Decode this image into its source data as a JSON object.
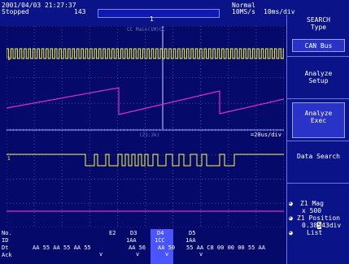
{
  "status": {
    "datetime": "2001/04/03 21:27:37",
    "state": "Stopped",
    "count": "143",
    "mode": "Normal",
    "sample_rate": "10MS/s",
    "time_div": "10ms/div"
  },
  "main_window": {
    "label": "CC Main(1M)CC",
    "trace_label": "1"
  },
  "zoom_window": {
    "label": "(Z1:2k)",
    "time_div": "=20us/div"
  },
  "menu": {
    "title": "SEARCH",
    "type_label": "Type",
    "type_value": "CAN Bus",
    "analyze_setup": "Analyze\nSetup",
    "analyze_exec": "Analyze\nExec",
    "data_search": "Data Search",
    "z1_mag_label": "Z1 Mag",
    "z1_mag_value": "x 500",
    "z1_position_label": "Z1 Position",
    "z1_position_value": "0.38",
    "z1_position_value_hl": "5",
    "z1_position_value_tail": "43div",
    "list_label": "List"
  },
  "decode": {
    "row_labels": [
      "No.",
      "ID",
      "Dt",
      "Ack"
    ],
    "columns": [
      {
        "no": "E2",
        "id": "",
        "dt": ""
      },
      {
        "no": "D3",
        "id": "1AA",
        "dt": "AA 56"
      },
      {
        "no": "D4",
        "id": "1CC",
        "dt": "AA 50"
      },
      {
        "no": "D5",
        "id": "1AA",
        "dt": "55 AA C8 00 00 00 55 AA"
      }
    ],
    "left_data": "AA 55 AA 55 AA 55",
    "ack_marks": [
      "v",
      "v",
      "v",
      "v"
    ]
  },
  "colors": {
    "trace_yellow": "#ffff33",
    "trace_magenta": "#e02ad0",
    "grid": "#3a46c0",
    "background": "#050a6a"
  }
}
